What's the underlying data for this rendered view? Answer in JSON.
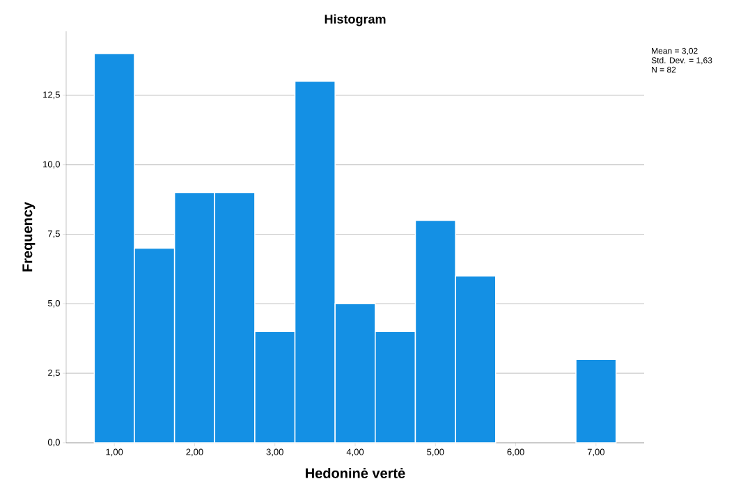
{
  "chart_data": {
    "type": "histogram",
    "title": "Histogram",
    "xlabel": "Hedoninė vertė",
    "ylabel": "Frequency",
    "bins": [
      0.75,
      1.25,
      1.75,
      2.25,
      2.75,
      3.25,
      3.75,
      4.25,
      4.75,
      5.25,
      5.75,
      6.25,
      6.75,
      7.25
    ],
    "values": [
      14,
      7,
      9,
      9,
      4,
      13,
      5,
      4,
      8,
      6,
      0,
      0,
      3
    ],
    "color": "#1490e4",
    "xlim": [
      0.4,
      7.6
    ],
    "ylim": [
      0,
      14.8
    ],
    "xticks": [
      {
        "value": 1,
        "label": "1,00"
      },
      {
        "value": 2,
        "label": "2,00"
      },
      {
        "value": 3,
        "label": "3,00"
      },
      {
        "value": 4,
        "label": "4,00"
      },
      {
        "value": 5,
        "label": "5,00"
      },
      {
        "value": 6,
        "label": "6,00"
      },
      {
        "value": 7,
        "label": "7,00"
      }
    ],
    "yticks": [
      {
        "value": 0,
        "label": "0,0"
      },
      {
        "value": 2.5,
        "label": "2,5"
      },
      {
        "value": 5,
        "label": "5,0"
      },
      {
        "value": 7.5,
        "label": "7,5"
      },
      {
        "value": 10,
        "label": "10,0"
      },
      {
        "value": 12.5,
        "label": "12,5"
      }
    ],
    "grid": "y",
    "annotations": [
      "Mean = 3,02",
      "Std. Dev. = 1,63",
      "N = 82"
    ]
  }
}
